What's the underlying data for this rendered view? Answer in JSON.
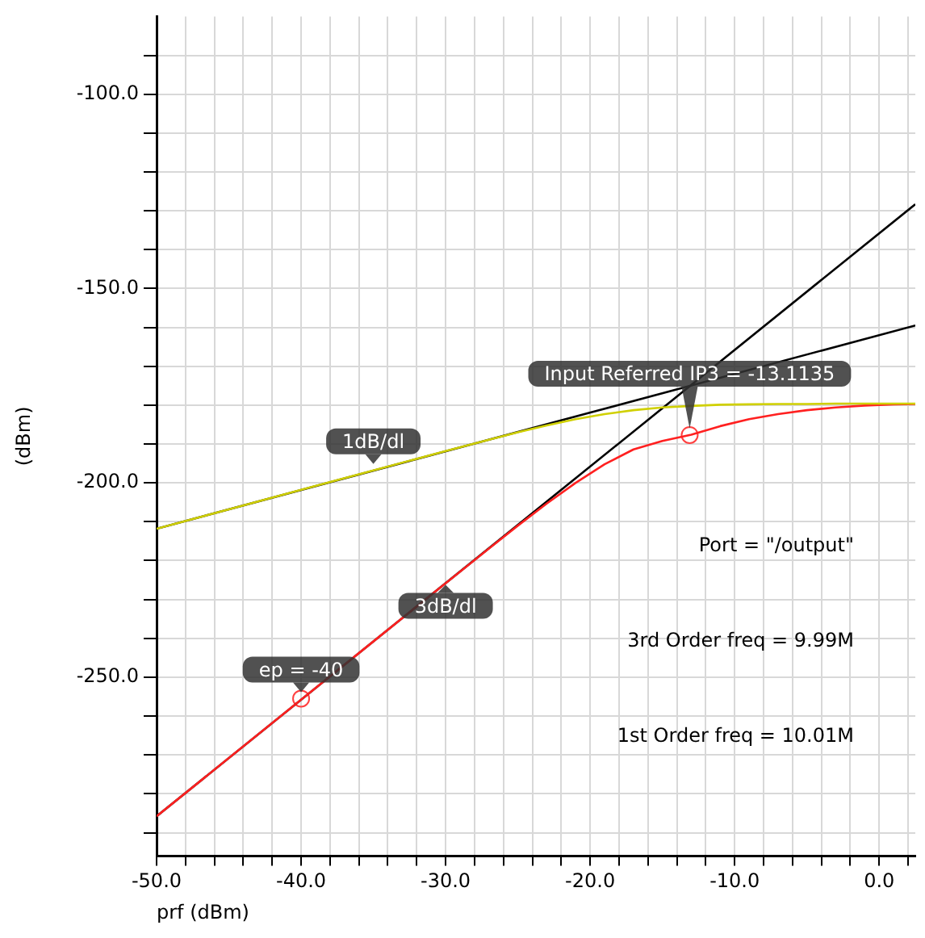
{
  "chart_data": {
    "type": "line",
    "xlabel": "prf (dBm)",
    "ylabel": "(dBm)",
    "xlim": [
      -50,
      2.5
    ],
    "ylim": [
      -296,
      -80
    ],
    "xticks": [
      {
        "value": -50,
        "label": "-50.0"
      },
      {
        "value": -48,
        "label": null
      },
      {
        "value": -46,
        "label": null
      },
      {
        "value": -44,
        "label": null
      },
      {
        "value": -42,
        "label": null
      },
      {
        "value": -40,
        "label": "-40.0"
      },
      {
        "value": -38,
        "label": null
      },
      {
        "value": -36,
        "label": null
      },
      {
        "value": -34,
        "label": null
      },
      {
        "value": -32,
        "label": null
      },
      {
        "value": -30,
        "label": "-30.0"
      },
      {
        "value": -28,
        "label": null
      },
      {
        "value": -26,
        "label": null
      },
      {
        "value": -24,
        "label": null
      },
      {
        "value": -22,
        "label": null
      },
      {
        "value": -20,
        "label": "-20.0"
      },
      {
        "value": -18,
        "label": null
      },
      {
        "value": -16,
        "label": null
      },
      {
        "value": -14,
        "label": null
      },
      {
        "value": -12,
        "label": null
      },
      {
        "value": -10,
        "label": "-10.0"
      },
      {
        "value": -8,
        "label": null
      },
      {
        "value": -6,
        "label": null
      },
      {
        "value": -4,
        "label": null
      },
      {
        "value": -2,
        "label": null
      },
      {
        "value": 0,
        "label": "0.0"
      },
      {
        "value": 2,
        "label": null
      }
    ],
    "yticks": [
      {
        "value": -290,
        "label": null
      },
      {
        "value": -280,
        "label": null
      },
      {
        "value": -270,
        "label": null
      },
      {
        "value": -260,
        "label": null
      },
      {
        "value": -250,
        "label": "-250.0"
      },
      {
        "value": -240,
        "label": null
      },
      {
        "value": -230,
        "label": null
      },
      {
        "value": -220,
        "label": null
      },
      {
        "value": -210,
        "label": null
      },
      {
        "value": -200,
        "label": "-200.0"
      },
      {
        "value": -190,
        "label": null
      },
      {
        "value": -180,
        "label": null
      },
      {
        "value": -170,
        "label": null
      },
      {
        "value": -160,
        "label": null
      },
      {
        "value": -150,
        "label": "-150.0"
      },
      {
        "value": -140,
        "label": null
      },
      {
        "value": -130,
        "label": null
      },
      {
        "value": -120,
        "label": null
      },
      {
        "value": -110,
        "label": null
      },
      {
        "value": -100,
        "label": "-100.0"
      },
      {
        "value": -90,
        "label": null
      }
    ],
    "grid": true,
    "legend": false,
    "series": [
      {
        "color": "#d0d000",
        "x": [
          -50,
          -45,
          -40,
          -35,
          -30,
          -27,
          -25,
          -23,
          -21,
          -19,
          -17,
          -15,
          -13,
          -11,
          -9,
          -7,
          -5,
          -3,
          -1,
          1,
          2.5
        ],
        "values": [
          -211.8,
          -206.8,
          -201.8,
          -196.8,
          -191.8,
          -188.9,
          -187.0,
          -185.2,
          -183.6,
          -182.3,
          -181.3,
          -180.6,
          -180.2,
          -179.9,
          -179.8,
          -179.7,
          -179.7,
          -179.6,
          -179.6,
          -179.6,
          -179.6
        ]
      },
      {
        "color": "#ff2020",
        "x": [
          -50,
          -45,
          -40,
          -35,
          -30,
          -27,
          -25,
          -23,
          -21,
          -19,
          -17,
          -15,
          -13,
          -11,
          -9,
          -7,
          -5,
          -3,
          -1,
          1,
          2.5
        ],
        "values": [
          -285.8,
          -270.8,
          -255.8,
          -240.8,
          -225.8,
          -216.9,
          -211.0,
          -205.3,
          -200.0,
          -195.2,
          -191.4,
          -189.2,
          -187.6,
          -185.4,
          -183.6,
          -182.3,
          -181.3,
          -180.6,
          -180.1,
          -179.8,
          -179.7
        ]
      },
      {
        "color": "#000000",
        "x": [
          -50,
          2.5
        ],
        "values": [
          -211.8,
          -159.5
        ]
      },
      {
        "color": "#000000",
        "x": [
          -50,
          2.5
        ],
        "values": [
          -285.8,
          -128.3
        ]
      },
      {
        "type": "scatter",
        "color": "#ff4040",
        "marker": "circle",
        "x": [
          -40,
          -13.1135
        ],
        "values": [
          -255.5,
          -187.7
        ]
      }
    ],
    "annotations": [
      {
        "text": "Input Referred IP3 = -13.1135",
        "x": -13.1135,
        "y": -187.7
      },
      {
        "text": "1dB/dl",
        "x": -35,
        "y": -196.8
      },
      {
        "text": "3dB/dl",
        "x": -30,
        "y": -225.8
      },
      {
        "text": "ep = -40",
        "x": -40,
        "y": -255.5
      },
      "Port = \"/output\"",
      "3rd Order freq = 9.99M",
      "1st Order freq = 10.01M"
    ]
  }
}
